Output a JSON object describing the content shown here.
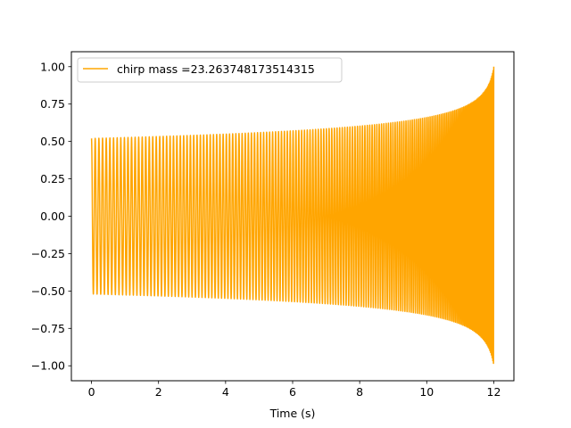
{
  "chart_data": {
    "type": "line",
    "title": "",
    "xlabel": "Time (s)",
    "ylabel": "",
    "xlim": [
      -0.6,
      12.6
    ],
    "ylim": [
      -1.1,
      1.1
    ],
    "xticks": [
      0,
      2,
      4,
      6,
      8,
      10,
      12
    ],
    "xtick_labels": [
      "0",
      "2",
      "4",
      "6",
      "8",
      "10",
      "12"
    ],
    "yticks": [
      1.0,
      0.75,
      0.5,
      0.25,
      0.0,
      -0.25,
      -0.5,
      -0.75,
      -1.0
    ],
    "ytick_labels": [
      "1.00",
      "0.75",
      "0.50",
      "0.25",
      "0.00",
      "−0.25",
      "−0.50",
      "−0.75",
      "−1.00"
    ],
    "grid": false,
    "legend_position": "upper-left",
    "series": [
      {
        "name": "chirp mass =23.263748173514315",
        "color": "#ffa500",
        "signal": {
          "kind": "chirp",
          "t_start": 0.0,
          "t_end": 12.0,
          "t_coalescence": 12.1,
          "amplitude_start": 0.52,
          "amplitude_end": 1.0,
          "cycles_total": 166
        }
      }
    ]
  }
}
